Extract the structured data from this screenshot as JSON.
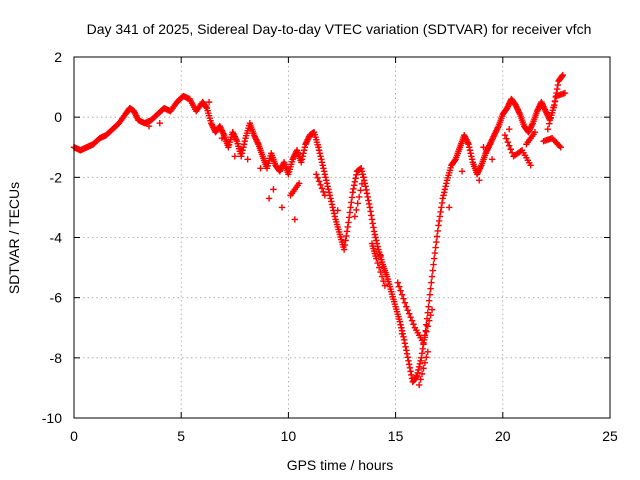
{
  "chart_data": {
    "type": "scatter",
    "title": "Day 341 of 2025, Sidereal Day-to-day VTEC variation (SDTVAR) for receiver vfch",
    "xlabel": "GPS time / hours",
    "ylabel": "SDTVAR / TECUs",
    "xlim": [
      0,
      25
    ],
    "ylim": [
      -10,
      2
    ],
    "xticks": [
      "0",
      "5",
      "10",
      "15",
      "20",
      "25"
    ],
    "yticks": [
      "2",
      "0",
      "-2",
      "-4",
      "-6",
      "-8",
      "-10"
    ],
    "grid": true,
    "marker": "plus",
    "color": "#ff0000",
    "series": [
      {
        "name": "SDTVAR",
        "points": [
          [
            0.0,
            -1.0
          ],
          [
            0.3,
            -1.1
          ],
          [
            0.6,
            -1.0
          ],
          [
            0.9,
            -0.9
          ],
          [
            1.2,
            -0.7
          ],
          [
            1.5,
            -0.6
          ],
          [
            1.8,
            -0.4
          ],
          [
            2.1,
            -0.2
          ],
          [
            2.4,
            0.1
          ],
          [
            2.6,
            0.3
          ],
          [
            2.8,
            0.2
          ],
          [
            3.0,
            -0.1
          ],
          [
            3.3,
            -0.2
          ],
          [
            3.6,
            -0.1
          ],
          [
            3.9,
            0.1
          ],
          [
            4.2,
            0.3
          ],
          [
            4.5,
            0.2
          ],
          [
            4.8,
            0.5
          ],
          [
            5.1,
            0.7
          ],
          [
            5.4,
            0.6
          ],
          [
            5.7,
            0.2
          ],
          [
            6.0,
            0.5
          ],
          [
            6.2,
            0.3
          ],
          [
            6.4,
            -0.2
          ],
          [
            6.6,
            -0.5
          ],
          [
            6.8,
            -0.3
          ],
          [
            7.0,
            -0.6
          ],
          [
            7.2,
            -1.0
          ],
          [
            7.4,
            -0.5
          ],
          [
            7.6,
            -0.8
          ],
          [
            7.8,
            -1.3
          ],
          [
            8.0,
            -0.7
          ],
          [
            8.2,
            -0.2
          ],
          [
            8.4,
            -0.6
          ],
          [
            8.6,
            -0.9
          ],
          [
            8.8,
            -1.3
          ],
          [
            9.0,
            -1.7
          ],
          [
            9.2,
            -1.2
          ],
          [
            9.4,
            -1.6
          ],
          [
            9.6,
            -1.8
          ],
          [
            9.8,
            -1.5
          ],
          [
            10.0,
            -1.9
          ],
          [
            10.2,
            -1.4
          ],
          [
            10.4,
            -1.1
          ],
          [
            10.6,
            -1.5
          ],
          [
            10.8,
            -0.9
          ],
          [
            11.0,
            -0.6
          ],
          [
            11.2,
            -0.5
          ],
          [
            11.4,
            -1.0
          ],
          [
            11.6,
            -1.6
          ],
          [
            11.8,
            -2.2
          ],
          [
            12.0,
            -2.8
          ],
          [
            12.2,
            -3.4
          ],
          [
            12.4,
            -3.9
          ],
          [
            12.6,
            -4.4
          ],
          [
            12.8,
            -3.5
          ],
          [
            13.0,
            -2.5
          ],
          [
            13.2,
            -1.8
          ],
          [
            13.4,
            -1.7
          ],
          [
            13.6,
            -2.3
          ],
          [
            13.8,
            -3.0
          ],
          [
            14.0,
            -3.8
          ],
          [
            14.2,
            -4.4
          ],
          [
            14.4,
            -4.9
          ],
          [
            14.6,
            -5.3
          ],
          [
            14.8,
            -5.8
          ],
          [
            15.0,
            -6.3
          ],
          [
            15.2,
            -6.8
          ],
          [
            15.4,
            -7.4
          ],
          [
            15.6,
            -8.1
          ],
          [
            15.8,
            -8.8
          ],
          [
            16.0,
            -8.6
          ],
          [
            16.2,
            -8.0
          ],
          [
            16.4,
            -7.1
          ],
          [
            16.6,
            -5.9
          ],
          [
            16.8,
            -4.7
          ],
          [
            17.0,
            -3.6
          ],
          [
            17.2,
            -2.7
          ],
          [
            17.4,
            -2.1
          ],
          [
            17.6,
            -1.6
          ],
          [
            17.8,
            -1.4
          ],
          [
            18.0,
            -1.0
          ],
          [
            18.2,
            -0.6
          ],
          [
            18.4,
            -0.9
          ],
          [
            18.6,
            -1.5
          ],
          [
            18.8,
            -1.9
          ],
          [
            19.0,
            -1.6
          ],
          [
            19.2,
            -1.2
          ],
          [
            19.4,
            -0.9
          ],
          [
            19.6,
            -0.6
          ],
          [
            19.8,
            -0.3
          ],
          [
            20.0,
            0.1
          ],
          [
            20.2,
            0.3
          ],
          [
            20.4,
            0.6
          ],
          [
            20.6,
            0.4
          ],
          [
            20.8,
            0.1
          ],
          [
            21.0,
            -0.3
          ],
          [
            21.2,
            -0.5
          ],
          [
            21.4,
            -0.2
          ],
          [
            21.6,
            0.2
          ],
          [
            21.8,
            0.5
          ],
          [
            22.0,
            0.2
          ],
          [
            22.2,
            -0.1
          ],
          [
            22.4,
            0.4
          ],
          [
            22.6,
            1.2
          ],
          [
            22.8,
            1.4
          ],
          [
            3.5,
            -0.3
          ],
          [
            4.0,
            -0.2
          ],
          [
            6.3,
            0.5
          ],
          [
            6.9,
            -0.7
          ],
          [
            7.5,
            -1.3
          ],
          [
            8.1,
            -1.4
          ],
          [
            8.7,
            -1.7
          ],
          [
            9.3,
            -2.4
          ],
          [
            10.1,
            -2.6
          ],
          [
            10.5,
            -2.2
          ],
          [
            11.3,
            -1.9
          ],
          [
            11.7,
            -2.6
          ],
          [
            12.3,
            -3.1
          ],
          [
            13.1,
            -3.3
          ],
          [
            13.5,
            -2.0
          ],
          [
            14.3,
            -4.6
          ],
          [
            15.1,
            -5.5
          ],
          [
            15.5,
            -6.3
          ],
          [
            15.9,
            -7.0
          ],
          [
            16.3,
            -7.5
          ],
          [
            16.7,
            -6.4
          ],
          [
            17.5,
            -3.0
          ],
          [
            18.1,
            -1.8
          ],
          [
            18.9,
            -2.1
          ],
          [
            19.5,
            -1.4
          ],
          [
            20.1,
            -0.6
          ],
          [
            20.5,
            -1.3
          ],
          [
            20.9,
            -1.1
          ],
          [
            21.3,
            -1.6
          ],
          [
            21.9,
            -0.8
          ],
          [
            22.3,
            -0.7
          ],
          [
            22.7,
            -1.0
          ],
          [
            19.1,
            -1.0
          ],
          [
            20.3,
            -0.4
          ],
          [
            21.1,
            -0.9
          ],
          [
            21.5,
            -0.5
          ],
          [
            22.1,
            -0.4
          ],
          [
            22.5,
            0.7
          ],
          [
            22.9,
            0.8
          ],
          [
            9.1,
            -2.7
          ],
          [
            9.7,
            -3.0
          ],
          [
            10.3,
            -3.4
          ],
          [
            13.9,
            -4.2
          ],
          [
            14.1,
            -4.7
          ],
          [
            14.5,
            -5.6
          ],
          [
            15.3,
            -7.2
          ],
          [
            16.1,
            -8.9
          ],
          [
            16.5,
            -7.8
          ]
        ]
      }
    ]
  }
}
